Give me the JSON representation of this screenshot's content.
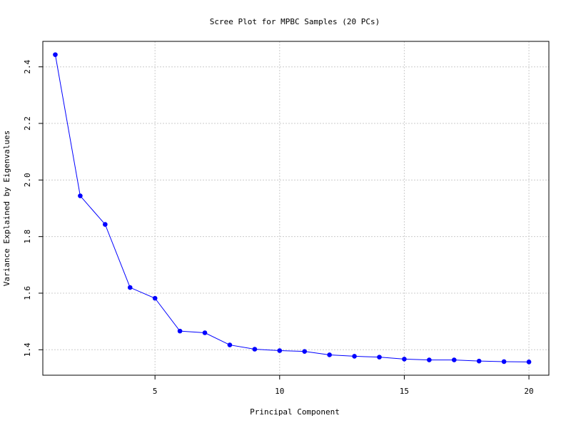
{
  "chart_data": {
    "type": "line",
    "title": "Scree Plot for MPBC Samples (20 PCs)",
    "xlabel": "Principal Component",
    "ylabel": "Variance Explained by Eigenvalues",
    "xlim": [
      0.5,
      20.8
    ],
    "ylim": [
      1.31,
      2.49
    ],
    "x_ticks": [
      5,
      10,
      15,
      20
    ],
    "x_tick_labels": [
      "5",
      "10",
      "15",
      "20"
    ],
    "y_ticks": [
      1.4,
      1.6,
      1.8,
      2.0,
      2.2,
      2.4
    ],
    "y_tick_labels": [
      "1.4",
      "1.6",
      "1.8",
      "2.0",
      "2.2",
      "2.4"
    ],
    "grid": true,
    "line_color": "#0000ff",
    "grid_color": "#cccccc",
    "series": [
      {
        "x": [
          1,
          2,
          3,
          4,
          5,
          6,
          7,
          8,
          9,
          10,
          11,
          12,
          13,
          14,
          15,
          16,
          17,
          18,
          19,
          20
        ],
        "values": [
          2.443,
          1.944,
          1.843,
          1.62,
          1.582,
          1.466,
          1.46,
          1.417,
          1.402,
          1.397,
          1.394,
          1.382,
          1.377,
          1.374,
          1.367,
          1.364,
          1.364,
          1.36,
          1.358,
          1.357
        ]
      }
    ]
  }
}
